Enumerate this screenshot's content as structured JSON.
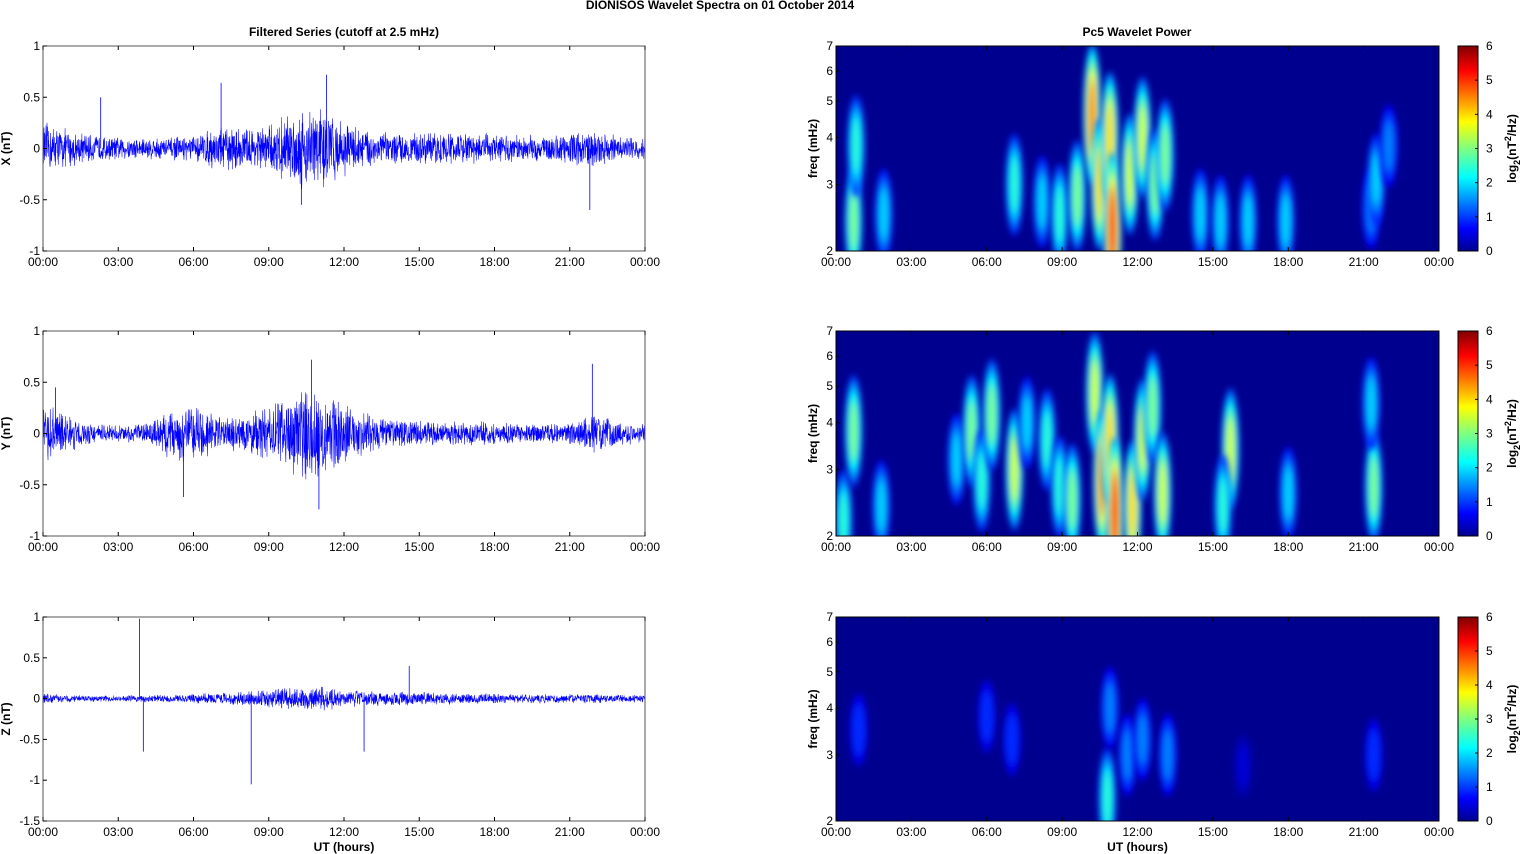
{
  "figure": {
    "title": "DIONISOS Wavelet Spectra on 01 October   2014",
    "left_title": "Filtered Series (cutoff at 2.5 mHz)",
    "right_title": "Pc5 Wavelet Power",
    "time_xlabel": "UT (hours)"
  },
  "chart_data": [
    {
      "type": "line",
      "component": "X",
      "ylabel": "X (nT)",
      "xlabel": "",
      "x_ticks": [
        "00:00",
        "03:00",
        "06:00",
        "09:00",
        "12:00",
        "15:00",
        "18:00",
        "21:00",
        "00:00"
      ],
      "xlim_hours": [
        0,
        24
      ],
      "ylim": [
        -1,
        1
      ],
      "y_ticks": [
        "-1",
        "-0.5",
        "0",
        "0.5",
        "1"
      ],
      "line_color": "#0000ff",
      "envelope_hours": [
        0,
        1,
        2,
        3,
        4,
        5,
        6,
        7,
        8,
        9,
        10,
        11,
        12,
        13,
        14,
        15,
        16,
        17,
        18,
        19,
        20,
        21,
        22,
        23,
        24
      ],
      "envelope_amplitude_nT": [
        0.28,
        0.2,
        0.14,
        0.12,
        0.12,
        0.12,
        0.13,
        0.24,
        0.22,
        0.24,
        0.4,
        0.48,
        0.28,
        0.2,
        0.16,
        0.16,
        0.17,
        0.16,
        0.16,
        0.14,
        0.14,
        0.16,
        0.2,
        0.12,
        0.12
      ],
      "spikes": [
        {
          "t": 2.3,
          "v": 0.5
        },
        {
          "t": 7.1,
          "v": 0.64
        },
        {
          "t": 10.3,
          "v": -0.55
        },
        {
          "t": 11.3,
          "v": 0.72
        },
        {
          "t": 21.8,
          "v": -0.6
        }
      ]
    },
    {
      "type": "line",
      "component": "Y",
      "ylabel": "Y (nT)",
      "xlabel": "",
      "x_ticks": [
        "00:00",
        "03:00",
        "06:00",
        "09:00",
        "12:00",
        "15:00",
        "18:00",
        "21:00",
        "00:00"
      ],
      "xlim_hours": [
        0,
        24
      ],
      "ylim": [
        -1,
        1
      ],
      "y_ticks": [
        "-1",
        "-0.5",
        "0",
        "0.5",
        "1"
      ],
      "line_color": "#0000ff",
      "envelope_hours": [
        0,
        1,
        2,
        3,
        4,
        5,
        6,
        7,
        8,
        9,
        10,
        11,
        12,
        13,
        14,
        15,
        16,
        17,
        18,
        19,
        20,
        21,
        22,
        23,
        24
      ],
      "envelope_amplitude_nT": [
        0.3,
        0.2,
        0.1,
        0.08,
        0.1,
        0.25,
        0.32,
        0.18,
        0.2,
        0.3,
        0.45,
        0.5,
        0.32,
        0.22,
        0.14,
        0.14,
        0.12,
        0.13,
        0.12,
        0.1,
        0.1,
        0.12,
        0.22,
        0.12,
        0.1
      ],
      "spikes": [
        {
          "t": 0.5,
          "v": 0.45
        },
        {
          "t": 5.6,
          "v": -0.62
        },
        {
          "t": 10.7,
          "v": 0.72
        },
        {
          "t": 11.0,
          "v": -0.74
        },
        {
          "t": 21.9,
          "v": 0.68
        }
      ]
    },
    {
      "type": "line",
      "component": "Z",
      "ylabel": "Z (nT)",
      "xlabel": "UT (hours)",
      "x_ticks": [
        "00:00",
        "03:00",
        "06:00",
        "09:00",
        "12:00",
        "15:00",
        "18:00",
        "21:00",
        "00:00"
      ],
      "xlim_hours": [
        0,
        24
      ],
      "ylim": [
        -1.5,
        1
      ],
      "y_ticks": [
        "-1.5",
        "-1",
        "-0.5",
        "0",
        "0.5",
        "1"
      ],
      "line_color": "#0000ff",
      "envelope_hours": [
        0,
        1,
        2,
        3,
        4,
        5,
        6,
        7,
        8,
        9,
        10,
        11,
        12,
        13,
        14,
        15,
        16,
        17,
        18,
        19,
        20,
        21,
        22,
        23,
        24
      ],
      "envelope_amplitude_nT": [
        0.07,
        0.05,
        0.04,
        0.04,
        0.05,
        0.05,
        0.06,
        0.08,
        0.1,
        0.12,
        0.14,
        0.16,
        0.12,
        0.1,
        0.09,
        0.09,
        0.08,
        0.07,
        0.07,
        0.06,
        0.06,
        0.06,
        0.06,
        0.05,
        0.05
      ],
      "spikes": [
        {
          "t": 3.85,
          "v": 0.98
        },
        {
          "t": 4.0,
          "v": -0.65
        },
        {
          "t": 8.3,
          "v": -1.05
        },
        {
          "t": 12.8,
          "v": -0.65
        },
        {
          "t": 14.6,
          "v": 0.4
        }
      ]
    },
    {
      "type": "heatmap",
      "component": "X",
      "ylabel": "freq (mHz)",
      "xlabel": "",
      "x_ticks": [
        "00:00",
        "03:00",
        "06:00",
        "09:00",
        "12:00",
        "15:00",
        "18:00",
        "21:00",
        "00:00"
      ],
      "xlim_hours": [
        0,
        24
      ],
      "y_scale": "log",
      "ylim_mHz": [
        2,
        7
      ],
      "y_ticks": [
        "2",
        "3",
        "4",
        "5",
        "6",
        "7"
      ],
      "colorbar": {
        "label": "log2(nT2/Hz)",
        "range": [
          0,
          6
        ],
        "ticks": [
          "0",
          "1",
          "2",
          "3",
          "4",
          "5",
          "6"
        ],
        "colormap": "jet"
      },
      "blobs": [
        {
          "t": 0.7,
          "f": 2.4,
          "power": 3.0
        },
        {
          "t": 0.8,
          "f": 3.8,
          "power": 2.5
        },
        {
          "t": 1.9,
          "f": 2.5,
          "power": 2.0
        },
        {
          "t": 7.1,
          "f": 3.0,
          "power": 2.5
        },
        {
          "t": 8.2,
          "f": 2.7,
          "power": 2.0
        },
        {
          "t": 8.9,
          "f": 2.5,
          "power": 2.5
        },
        {
          "t": 9.6,
          "f": 2.8,
          "power": 3.0
        },
        {
          "t": 10.2,
          "f": 4.6,
          "power": 4.5
        },
        {
          "t": 10.5,
          "f": 3.0,
          "power": 4.0
        },
        {
          "t": 10.9,
          "f": 4.0,
          "power": 4.0
        },
        {
          "t": 11.0,
          "f": 2.3,
          "power": 5.0
        },
        {
          "t": 11.7,
          "f": 3.2,
          "power": 3.5
        },
        {
          "t": 12.2,
          "f": 4.0,
          "power": 3.5
        },
        {
          "t": 12.7,
          "f": 3.0,
          "power": 3.0
        },
        {
          "t": 13.1,
          "f": 3.6,
          "power": 3.0
        },
        {
          "t": 14.5,
          "f": 2.5,
          "power": 2.0
        },
        {
          "t": 15.3,
          "f": 2.4,
          "power": 2.0
        },
        {
          "t": 16.4,
          "f": 2.4,
          "power": 2.0
        },
        {
          "t": 17.9,
          "f": 2.4,
          "power": 2.0
        },
        {
          "t": 21.3,
          "f": 2.6,
          "power": 1.5
        },
        {
          "t": 21.5,
          "f": 3.1,
          "power": 2.0
        },
        {
          "t": 22.0,
          "f": 3.8,
          "power": 1.5
        }
      ]
    },
    {
      "type": "heatmap",
      "component": "Y",
      "ylabel": "freq (mHz)",
      "xlabel": "",
      "x_ticks": [
        "00:00",
        "03:00",
        "06:00",
        "09:00",
        "12:00",
        "15:00",
        "18:00",
        "21:00",
        "00:00"
      ],
      "xlim_hours": [
        0,
        24
      ],
      "y_scale": "log",
      "ylim_mHz": [
        2,
        7
      ],
      "y_ticks": [
        "2",
        "3",
        "4",
        "5",
        "6",
        "7"
      ],
      "colorbar": {
        "label": "log2(nT2/Hz)",
        "range": [
          0,
          6
        ],
        "ticks": [
          "0",
          "1",
          "2",
          "3",
          "4",
          "5",
          "6"
        ],
        "colormap": "jet"
      },
      "blobs": [
        {
          "t": 0.3,
          "f": 2.2,
          "power": 2.5
        },
        {
          "t": 0.7,
          "f": 3.8,
          "power": 3.0
        },
        {
          "t": 1.8,
          "f": 2.4,
          "power": 2.0
        },
        {
          "t": 4.8,
          "f": 3.2,
          "power": 2.0
        },
        {
          "t": 5.4,
          "f": 3.8,
          "power": 3.0
        },
        {
          "t": 5.8,
          "f": 2.8,
          "power": 2.5
        },
        {
          "t": 6.2,
          "f": 4.2,
          "power": 3.0
        },
        {
          "t": 7.1,
          "f": 3.0,
          "power": 3.5
        },
        {
          "t": 7.6,
          "f": 4.0,
          "power": 2.0
        },
        {
          "t": 8.4,
          "f": 3.6,
          "power": 2.5
        },
        {
          "t": 8.9,
          "f": 2.7,
          "power": 2.5
        },
        {
          "t": 9.4,
          "f": 2.5,
          "power": 3.0
        },
        {
          "t": 10.3,
          "f": 4.8,
          "power": 3.5
        },
        {
          "t": 10.6,
          "f": 2.8,
          "power": 4.5
        },
        {
          "t": 10.9,
          "f": 3.6,
          "power": 4.0
        },
        {
          "t": 11.1,
          "f": 2.3,
          "power": 5.0
        },
        {
          "t": 11.8,
          "f": 2.4,
          "power": 4.0
        },
        {
          "t": 12.2,
          "f": 3.6,
          "power": 3.5
        },
        {
          "t": 12.6,
          "f": 4.4,
          "power": 3.0
        },
        {
          "t": 13.0,
          "f": 2.6,
          "power": 3.5
        },
        {
          "t": 15.7,
          "f": 3.4,
          "power": 3.5
        },
        {
          "t": 15.4,
          "f": 2.4,
          "power": 2.5
        },
        {
          "t": 18.0,
          "f": 2.6,
          "power": 2.0
        },
        {
          "t": 21.4,
          "f": 2.7,
          "power": 3.0
        },
        {
          "t": 21.3,
          "f": 4.5,
          "power": 2.0
        }
      ]
    },
    {
      "type": "heatmap",
      "component": "Z",
      "ylabel": "freq (mHz)",
      "xlabel": "UT (hours)",
      "x_ticks": [
        "00:00",
        "03:00",
        "06:00",
        "09:00",
        "12:00",
        "15:00",
        "18:00",
        "21:00",
        "00:00"
      ],
      "xlim_hours": [
        0,
        24
      ],
      "y_scale": "log",
      "ylim_mHz": [
        2,
        7
      ],
      "y_ticks": [
        "2",
        "3",
        "4",
        "5",
        "6",
        "7"
      ],
      "colorbar": {
        "label": "log2(nT2/Hz)",
        "range": [
          0,
          6
        ],
        "ticks": [
          "0",
          "1",
          "2",
          "3",
          "4",
          "5",
          "6"
        ],
        "colormap": "jet"
      },
      "blobs": [
        {
          "t": 0.9,
          "f": 3.5,
          "power": 1.0
        },
        {
          "t": 6.0,
          "f": 3.8,
          "power": 1.0
        },
        {
          "t": 7.0,
          "f": 3.3,
          "power": 1.0
        },
        {
          "t": 10.8,
          "f": 2.3,
          "power": 2.5
        },
        {
          "t": 10.9,
          "f": 4.0,
          "power": 1.5
        },
        {
          "t": 11.6,
          "f": 3.0,
          "power": 1.5
        },
        {
          "t": 12.2,
          "f": 3.3,
          "power": 1.5
        },
        {
          "t": 13.2,
          "f": 3.0,
          "power": 1.5
        },
        {
          "t": 16.2,
          "f": 2.8,
          "power": 0.5
        },
        {
          "t": 21.4,
          "f": 3.0,
          "power": 1.0
        }
      ]
    }
  ]
}
